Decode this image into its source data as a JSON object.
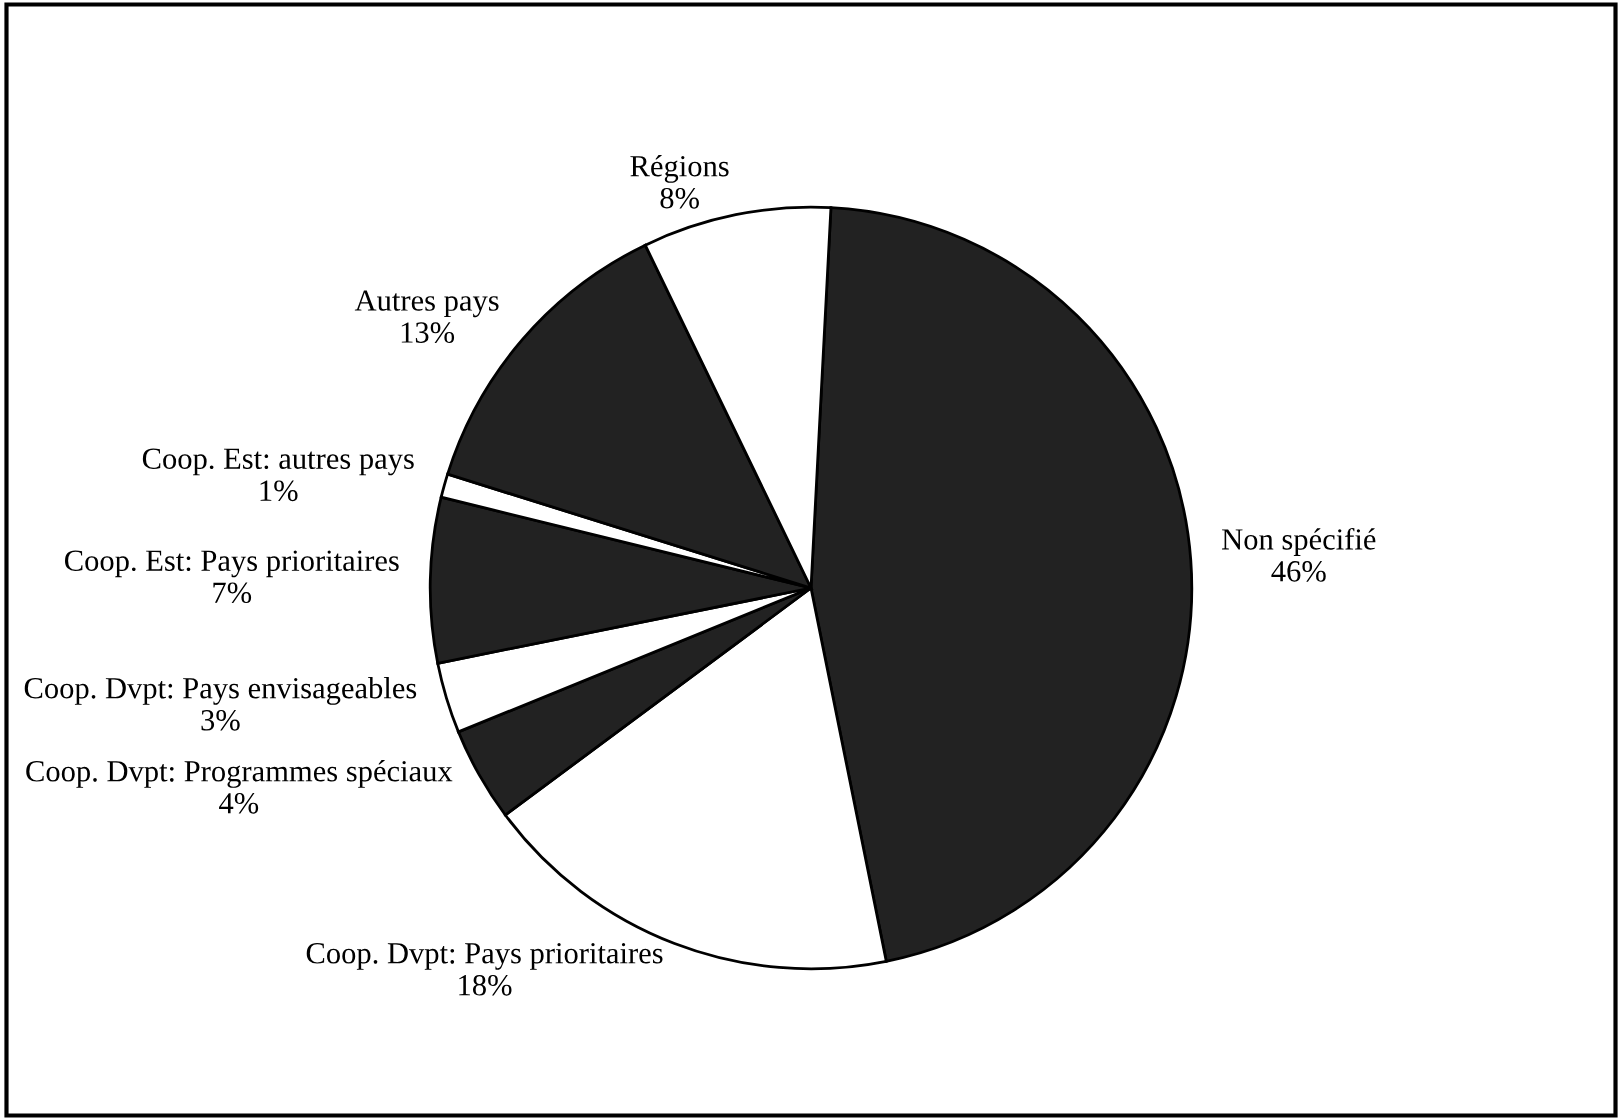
{
  "chart_data": {
    "type": "pie",
    "categories": [
      "Non spécifié",
      "Coop. Dvpt: Pays prioritaires",
      "Coop. Dvpt: Programmes spéciaux",
      "Coop. Dvpt: Pays envisageables",
      "Coop. Est: Pays prioritaires",
      "Coop. Est: autres pays",
      "Autres pays",
      "Régions"
    ],
    "values": [
      46,
      18,
      4,
      3,
      7,
      1,
      13,
      8
    ],
    "value_labels": [
      "46%",
      "18%",
      "4%",
      "3%",
      "7%",
      "1%",
      "13%",
      "8%"
    ],
    "colors": [
      "#222222",
      "#ffffff",
      "#222222",
      "#ffffff",
      "#222222",
      "#ffffff",
      "#222222",
      "#ffffff"
    ],
    "legend": false
  }
}
